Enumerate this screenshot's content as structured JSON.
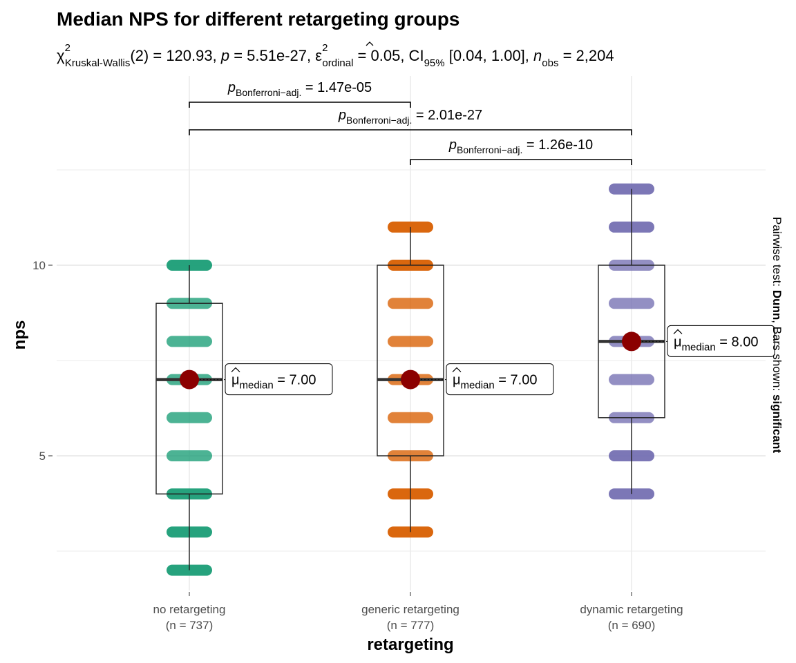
{
  "chart_data": {
    "type": "box",
    "title": "Median NPS for different retargeting groups",
    "subtitle": {
      "chi_label": "χ",
      "chi_sup": "2",
      "chi_sub": "Kruskal-Wallis",
      "df": "(2)",
      "eq1": " = 120.93, ",
      "p_label": "p",
      "p_value": " = 5.51e-27, ",
      "eps_label": "ε",
      "eps_sup": "2",
      "eps_sub": "ordinal",
      "eps_value": " = 0.05, CI",
      "ci_sub": "95%",
      "ci_value": " [0.04, 1.00], ",
      "n_label": "n",
      "n_sub": "obs",
      "n_value": " = 2,204"
    },
    "xlabel": "retargeting",
    "ylabel": "nps",
    "ylim": [
      1.2,
      13.0
    ],
    "yticks": [
      5,
      10
    ],
    "ytick_labels": [
      "5",
      "10"
    ],
    "grid": true,
    "categories": [
      "no retargeting",
      "generic retargeting",
      "dynamic retargeting"
    ],
    "n_labels": [
      "(n = 737)",
      "(n = 777)",
      "(n = 690)"
    ],
    "colors": [
      "#1b9e77",
      "#d95f02",
      "#7570b3"
    ],
    "median_marker_color": "#8b0000",
    "groups": [
      {
        "name": "no retargeting",
        "n": 737,
        "q1": 4,
        "median": 7,
        "q3": 9,
        "whisker_low": 2,
        "whisker_high": 10,
        "points": [
          2,
          3,
          4,
          5,
          6,
          7,
          8,
          9,
          10
        ],
        "median_label_value": "7.00"
      },
      {
        "name": "generic retargeting",
        "n": 777,
        "q1": 5,
        "median": 7,
        "q3": 10,
        "whisker_low": 3,
        "whisker_high": 11,
        "points": [
          3,
          4,
          5,
          6,
          7,
          8,
          9,
          10,
          11
        ],
        "median_label_value": "7.00"
      },
      {
        "name": "dynamic retargeting",
        "n": 690,
        "q1": 6,
        "median": 8,
        "q3": 10,
        "whisker_low": 4,
        "whisker_high": 12,
        "points": [
          4,
          5,
          6,
          7,
          8,
          9,
          10,
          11,
          12
        ],
        "median_label_value": "8.00"
      }
    ],
    "median_label": {
      "mu": "μ",
      "sub": "median",
      "eq": " = "
    },
    "pairwise": [
      {
        "from": 0,
        "to": 1,
        "p_label": "p",
        "p_sub": "Bonferroni−adj.",
        "p_value": " = 1.47e-05"
      },
      {
        "from": 0,
        "to": 2,
        "p_label": "p",
        "p_sub": "Bonferroni−adj.",
        "p_value": " = 2.01e-27"
      },
      {
        "from": 1,
        "to": 2,
        "p_label": "p",
        "p_sub": "Bonferroni−adj.",
        "p_value": " = 1.26e-10"
      }
    ],
    "caption": {
      "prefix": "Pairwise test: ",
      "test": "Dunn",
      "middle": ", Bars shown: ",
      "shown": "significant"
    }
  }
}
